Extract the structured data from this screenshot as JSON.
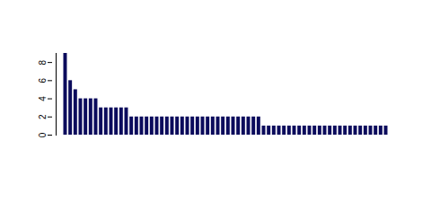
{
  "chart_data": {
    "type": "bar",
    "categories": [
      null,
      null,
      null,
      null,
      null,
      null,
      null,
      null,
      null,
      null,
      null,
      null,
      null,
      null,
      null,
      null,
      null,
      null,
      null,
      null,
      null,
      null,
      null,
      null,
      null,
      null,
      null,
      null,
      null,
      null,
      null,
      null,
      null,
      null,
      null,
      null,
      null,
      null,
      null,
      null,
      null,
      null,
      null,
      null,
      null,
      null,
      null,
      null,
      null,
      null,
      null,
      null,
      null,
      null,
      null,
      null,
      null,
      null,
      null,
      null,
      null,
      null,
      null,
      null
    ],
    "values": [
      9,
      6,
      5,
      4,
      4,
      4,
      4,
      3,
      3,
      3,
      3,
      3,
      3,
      2,
      2,
      2,
      2,
      2,
      2,
      2,
      2,
      2,
      2,
      2,
      2,
      2,
      2,
      2,
      2,
      2,
      2,
      2,
      2,
      2,
      2,
      2,
      2,
      2,
      2,
      1,
      1,
      1,
      1,
      1,
      1,
      1,
      1,
      1,
      1,
      1,
      1,
      1,
      1,
      1,
      1,
      1,
      1,
      1,
      1,
      1,
      1,
      1,
      1,
      1
    ],
    "color": "#0b0b5c",
    "ylim": [
      0,
      9
    ],
    "yticks": [
      0,
      2,
      4,
      6,
      8
    ],
    "grid": false,
    "tick_labels": "y"
  }
}
